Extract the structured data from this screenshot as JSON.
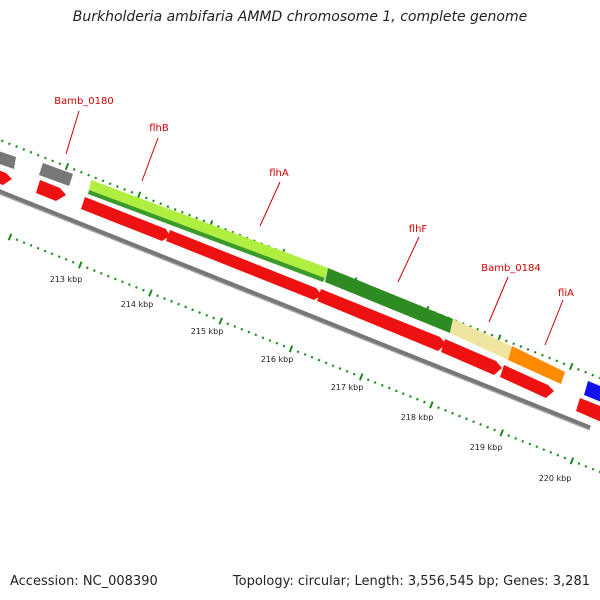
{
  "title": "Burkholderia ambifaria AMMD chromosome 1, complete genome",
  "footer": {
    "accession": "Accession: NC_008390",
    "summary": "Topology: circular; Length: 3,556,545 bp; Genes: 3,281"
  },
  "gene_labels": [
    {
      "id": "Bamb_0180",
      "label": "Bamb_0180"
    },
    {
      "id": "flhB",
      "label": "flhB"
    },
    {
      "id": "flhA",
      "label": "flhA"
    },
    {
      "id": "flhF",
      "label": "flhF"
    },
    {
      "id": "Bamb_0184",
      "label": "Bamb_0184"
    },
    {
      "id": "fliA",
      "label": "fliA"
    }
  ],
  "scale_labels": [
    "213 kbp",
    "214 kbp",
    "215 kbp",
    "216 kbp",
    "217 kbp",
    "218 kbp",
    "219 kbp",
    "220 kbp"
  ],
  "colors": {
    "cds": "#ee1111",
    "gene_gray": "#777777",
    "flhB": "#aaee33",
    "flhA": "#2e8b22",
    "Bamb_0184": "#efe5a0",
    "fliA": "#ff8c00",
    "next_gene": "#1111ee",
    "backbone": "#777777",
    "ticks": "#1a8a1a",
    "label_red": "#cc0000"
  }
}
